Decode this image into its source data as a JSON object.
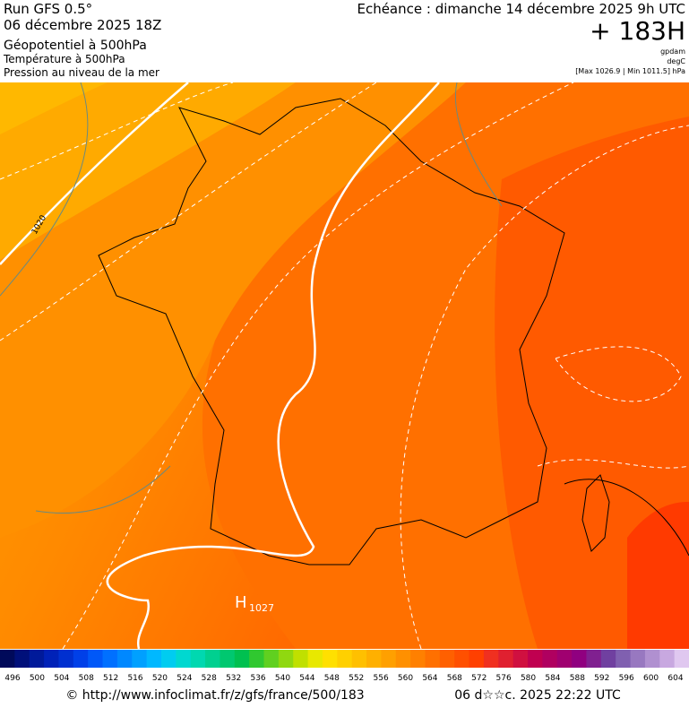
{
  "header": {
    "run": "Run GFS 0.5°",
    "run_date": "06 décembre 2025 18Z",
    "field1": "Géopotentiel à 500hPa",
    "field2": "Température à 500hPa",
    "field3": "Pression au niveau de la mer",
    "valid": "Echéance : dimanche 14 décembre 2025 9h UTC",
    "lead": "+ 183H",
    "unit1": "gpdam",
    "unit2": "degC",
    "pressure_range": "[Max 1026.9 | Min 1011.5] hPa"
  },
  "map": {
    "isobar_label": "1020",
    "high_letter": "H",
    "high_value": "1027"
  },
  "scale": {
    "labels": [
      496,
      500,
      504,
      508,
      512,
      516,
      520,
      524,
      528,
      532,
      536,
      540,
      544,
      548,
      552,
      556,
      560,
      564,
      568,
      572,
      576,
      580,
      584,
      588,
      592,
      596,
      600,
      604
    ],
    "colors": [
      "#000a5a",
      "#00107a",
      "#001a9a",
      "#0022b8",
      "#0030d0",
      "#0040e8",
      "#0058f8",
      "#0070ff",
      "#0088ff",
      "#00a0ff",
      "#00b8ff",
      "#00ccf0",
      "#00d8d0",
      "#00d8b0",
      "#00d090",
      "#00c870",
      "#00c050",
      "#30c830",
      "#60d020",
      "#90d810",
      "#c0e000",
      "#e8e800",
      "#ffe000",
      "#ffd000",
      "#ffc000",
      "#ffb000",
      "#ffa000",
      "#ff9000",
      "#ff8000",
      "#ff7000",
      "#ff6000",
      "#ff5000",
      "#ff4000",
      "#f03020",
      "#e02030",
      "#d01040",
      "#c00050",
      "#b00060",
      "#a00070",
      "#900080",
      "#802090",
      "#7040a0",
      "#8060b0",
      "#9878c0",
      "#b090d0",
      "#c8a8e0",
      "#e0c8f0"
    ]
  },
  "footer": {
    "url": "© http://www.infoclimat.fr/z/gfs/france/500/183",
    "generated": "06 d☆☆c. 2025 22:22 UTC"
  }
}
